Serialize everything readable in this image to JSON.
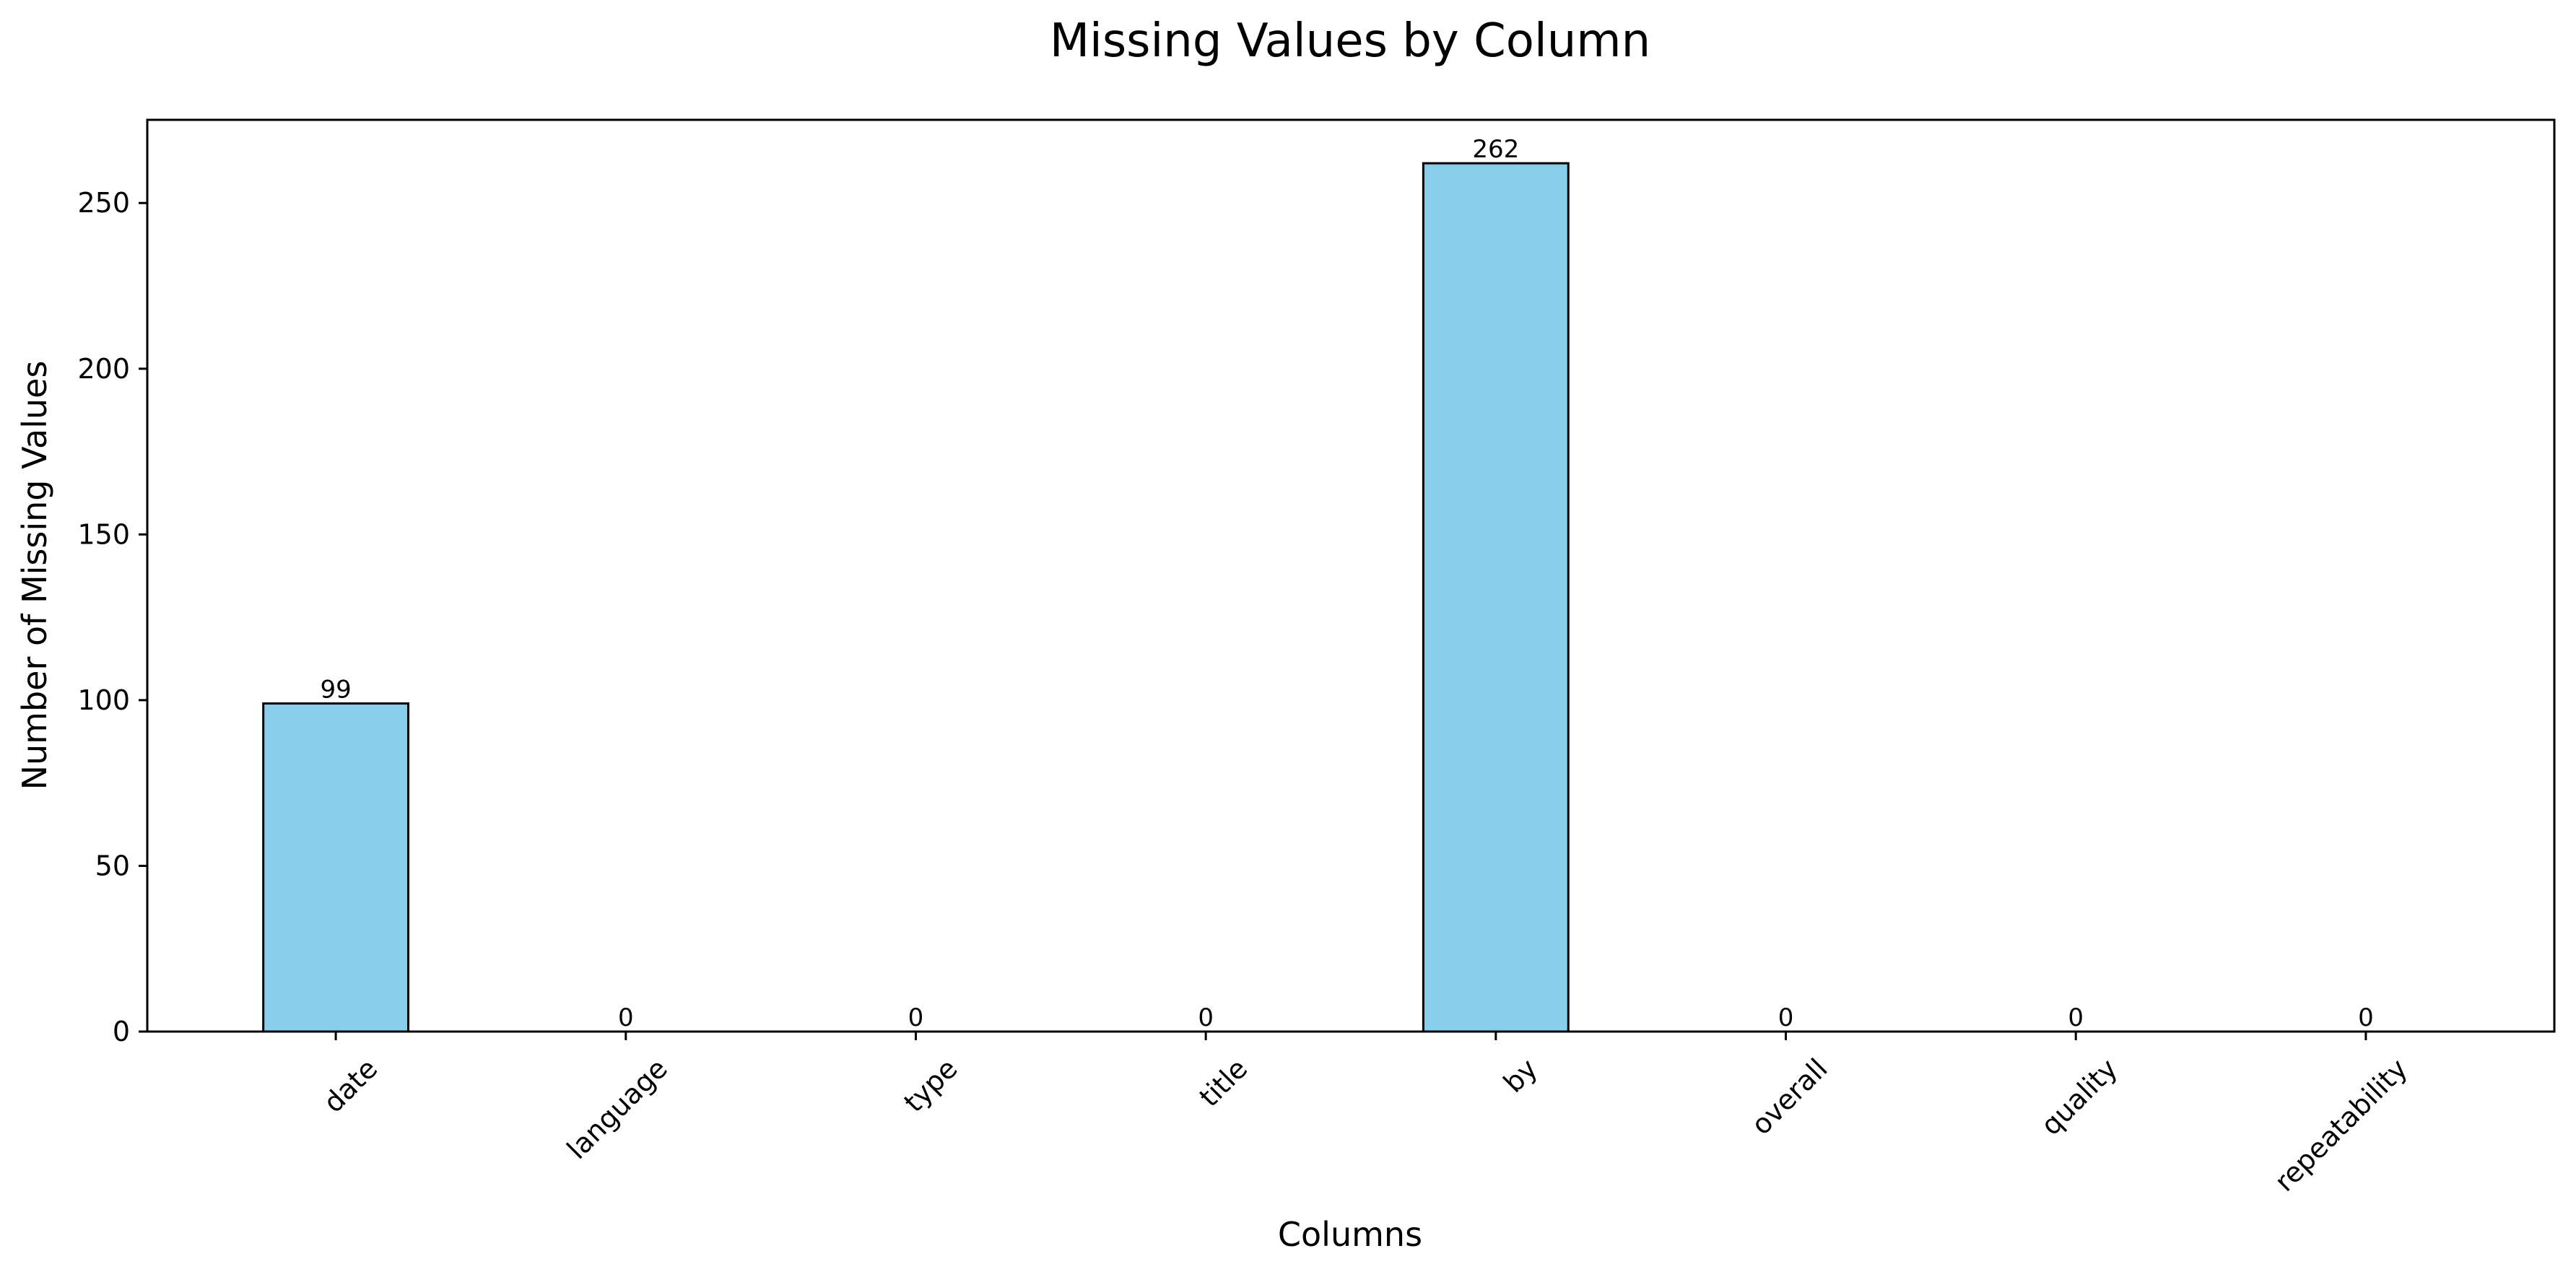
{
  "chart_data": {
    "type": "bar",
    "title": "Missing Values by Column",
    "xlabel": "Columns",
    "ylabel": "Number of Missing Values",
    "categories": [
      "date",
      "language",
      "type",
      "title",
      "by",
      "overall",
      "quality",
      "repeatability"
    ],
    "values": [
      99,
      0,
      0,
      0,
      262,
      0,
      0,
      0
    ],
    "data_labels": [
      "99",
      "0",
      "0",
      "0",
      "262",
      "0",
      "0",
      "0"
    ],
    "ylim": [
      0,
      275.1
    ],
    "yticks": [
      0,
      50,
      100,
      150,
      200,
      250
    ],
    "grid": false,
    "legend": "none",
    "x_tick_rotation_deg": 45,
    "colors": {
      "bar_fill": "#87CEEB",
      "bar_edge": "#000000",
      "axis": "#000000"
    }
  }
}
